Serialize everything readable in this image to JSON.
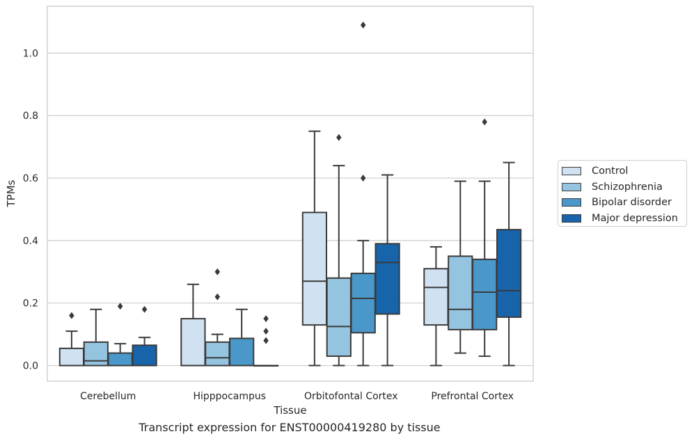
{
  "chart_data": {
    "type": "box",
    "title": "",
    "caption": "Transcript expression for ENST00000419280 by tissue",
    "xlabel": "Tissue",
    "ylabel": "TPMs",
    "ylim": [
      -0.05,
      1.15
    ],
    "yticks": [
      "0.0",
      "0.2",
      "0.4",
      "0.6",
      "0.8",
      "1.0"
    ],
    "categories": [
      "Cerebellum",
      "Hipppocampus",
      "Orbitofontal Cortex",
      "Prefrontal Cortex"
    ],
    "grid": "horizontal",
    "legend_position": "right",
    "series": [
      {
        "name": "Control",
        "color": "#d0e1f2",
        "boxes": [
          {
            "q1": 0.0,
            "median": 0.0,
            "q3": 0.055,
            "whisker_low": 0.0,
            "whisker_high": 0.11,
            "outliers": [
              0.16
            ]
          },
          {
            "q1": 0.0,
            "median": 0.0,
            "q3": 0.15,
            "whisker_low": 0.0,
            "whisker_high": 0.26,
            "outliers": []
          },
          {
            "q1": 0.13,
            "median": 0.27,
            "q3": 0.49,
            "whisker_low": 0.0,
            "whisker_high": 0.75,
            "outliers": []
          },
          {
            "q1": 0.13,
            "median": 0.25,
            "q3": 0.31,
            "whisker_low": 0.0,
            "whisker_high": 0.38,
            "outliers": []
          }
        ]
      },
      {
        "name": "Schizophrenia",
        "color": "#94c4df",
        "boxes": [
          {
            "q1": 0.0,
            "median": 0.015,
            "q3": 0.075,
            "whisker_low": 0.0,
            "whisker_high": 0.18,
            "outliers": []
          },
          {
            "q1": 0.0,
            "median": 0.025,
            "q3": 0.075,
            "whisker_low": 0.0,
            "whisker_high": 0.1,
            "outliers": [
              0.22,
              0.3
            ]
          },
          {
            "q1": 0.03,
            "median": 0.125,
            "q3": 0.28,
            "whisker_low": 0.0,
            "whisker_high": 0.64,
            "outliers": [
              0.73
            ]
          },
          {
            "q1": 0.115,
            "median": 0.18,
            "q3": 0.35,
            "whisker_low": 0.04,
            "whisker_high": 0.59,
            "outliers": []
          }
        ]
      },
      {
        "name": "Bipolar disorder",
        "color": "#4a98c9",
        "boxes": [
          {
            "q1": 0.0,
            "median": 0.0,
            "q3": 0.04,
            "whisker_low": 0.0,
            "whisker_high": 0.07,
            "outliers": [
              0.19
            ]
          },
          {
            "q1": 0.0,
            "median": 0.0,
            "q3": 0.087,
            "whisker_low": 0.0,
            "whisker_high": 0.18,
            "outliers": []
          },
          {
            "q1": 0.105,
            "median": 0.215,
            "q3": 0.295,
            "whisker_low": 0.0,
            "whisker_high": 0.4,
            "outliers": [
              0.6,
              1.09
            ]
          },
          {
            "q1": 0.115,
            "median": 0.235,
            "q3": 0.34,
            "whisker_low": 0.03,
            "whisker_high": 0.59,
            "outliers": [
              0.78
            ]
          }
        ]
      },
      {
        "name": "Major depression",
        "color": "#1764ab",
        "boxes": [
          {
            "q1": 0.0,
            "median": 0.0,
            "q3": 0.065,
            "whisker_low": 0.0,
            "whisker_high": 0.09,
            "outliers": [
              0.18
            ]
          },
          {
            "q1": 0.0,
            "median": 0.0,
            "q3": 0.0,
            "whisker_low": 0.0,
            "whisker_high": 0.0,
            "outliers": [
              0.08,
              0.11,
              0.15
            ]
          },
          {
            "q1": 0.165,
            "median": 0.33,
            "q3": 0.39,
            "whisker_low": 0.0,
            "whisker_high": 0.61,
            "outliers": []
          },
          {
            "q1": 0.155,
            "median": 0.24,
            "q3": 0.435,
            "whisker_low": 0.0,
            "whisker_high": 0.65,
            "outliers": []
          }
        ]
      }
    ]
  }
}
